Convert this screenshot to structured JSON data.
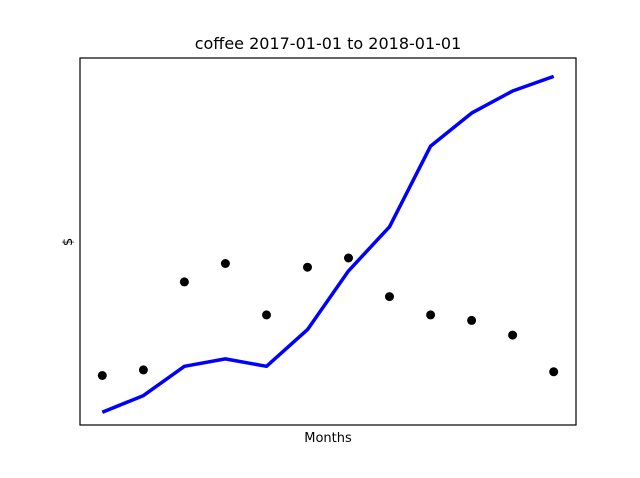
{
  "chart_data": {
    "type": "line",
    "title": "coffee 2017-01-01 to 2018-01-01",
    "xlabel": "Months",
    "ylabel": "$",
    "x_ticks_shown": false,
    "y_ticks_shown": false,
    "grid": false,
    "legend": "none",
    "x": [
      1,
      2,
      3,
      4,
      5,
      6,
      7,
      8,
      9,
      10,
      11,
      12
    ],
    "ylim": [
      0,
      100
    ],
    "series": [
      {
        "style": "line",
        "color": "#0000ff",
        "values": [
          3.5,
          8,
          16,
          18,
          16,
          26,
          42,
          54,
          76,
          85,
          91,
          95
        ]
      },
      {
        "style": "points",
        "color": "#000000",
        "values": [
          13.5,
          15,
          39,
          44,
          30,
          43,
          45.5,
          35,
          30,
          28.5,
          24.5,
          14.5
        ]
      }
    ],
    "colors": {
      "line": "#0000ff",
      "points": "#000000",
      "frame": "#000000",
      "background": "#ffffff"
    }
  }
}
